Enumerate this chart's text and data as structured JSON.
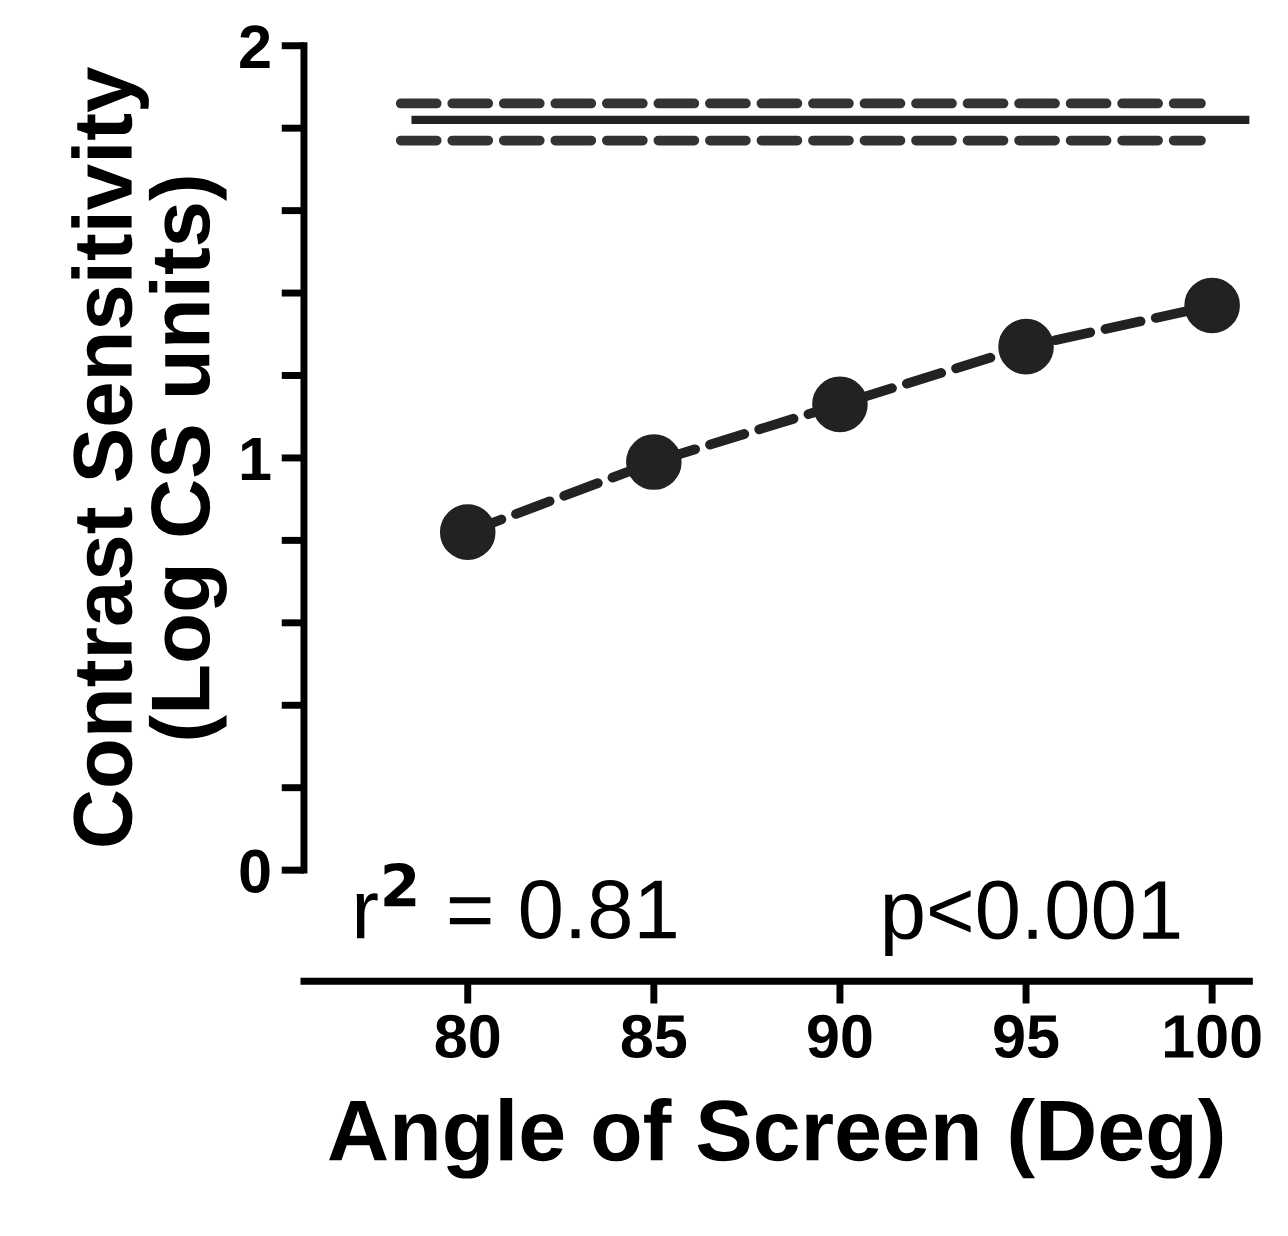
{
  "chart_data": {
    "type": "line",
    "xlabel": "Angle of Screen (Deg)",
    "ylabel": "Contrast Sensitivity\n(Log CS units)",
    "xlim": [
      75.6,
      101
    ],
    "xticks": [
      80,
      85,
      90,
      95,
      100
    ],
    "ylim": [
      0,
      2
    ],
    "yticks": [
      0,
      {
        "value": 0.2,
        "label": null
      },
      {
        "value": 0.4,
        "label": null
      },
      {
        "value": 0.6,
        "label": null
      },
      {
        "value": 0.8,
        "label": null
      },
      1,
      {
        "value": 1.2,
        "label": null
      },
      {
        "value": 1.4,
        "label": null
      },
      {
        "value": 1.6,
        "label": null
      },
      {
        "value": 1.8,
        "label": null
      },
      2
    ],
    "series": [
      {
        "color": "#222222",
        "x": [
          80,
          85,
          90,
          95,
          100
        ],
        "values": [
          0.82,
          0.99,
          1.13,
          1.27,
          1.37
        ],
        "marker": "circle",
        "line_style": "dashed"
      },
      {
        "color": "#222222",
        "x": [
          78.6,
          101
        ],
        "values": [
          1.82,
          1.82
        ],
        "marker": "none",
        "line_style": "solid"
      },
      {
        "color": "#333333",
        "x": [
          78.2,
          99.7
        ],
        "values": [
          1.86,
          1.86
        ],
        "marker": "none",
        "line_style": "dashed"
      },
      {
        "color": "#333333",
        "x": [
          78.2,
          99.7
        ],
        "values": [
          1.77,
          1.77
        ],
        "marker": "none",
        "line_style": "dashed"
      }
    ],
    "annotations": [
      "r$^{2}$ = 0.81",
      "p<0.001"
    ],
    "grid": false,
    "legend": false
  }
}
